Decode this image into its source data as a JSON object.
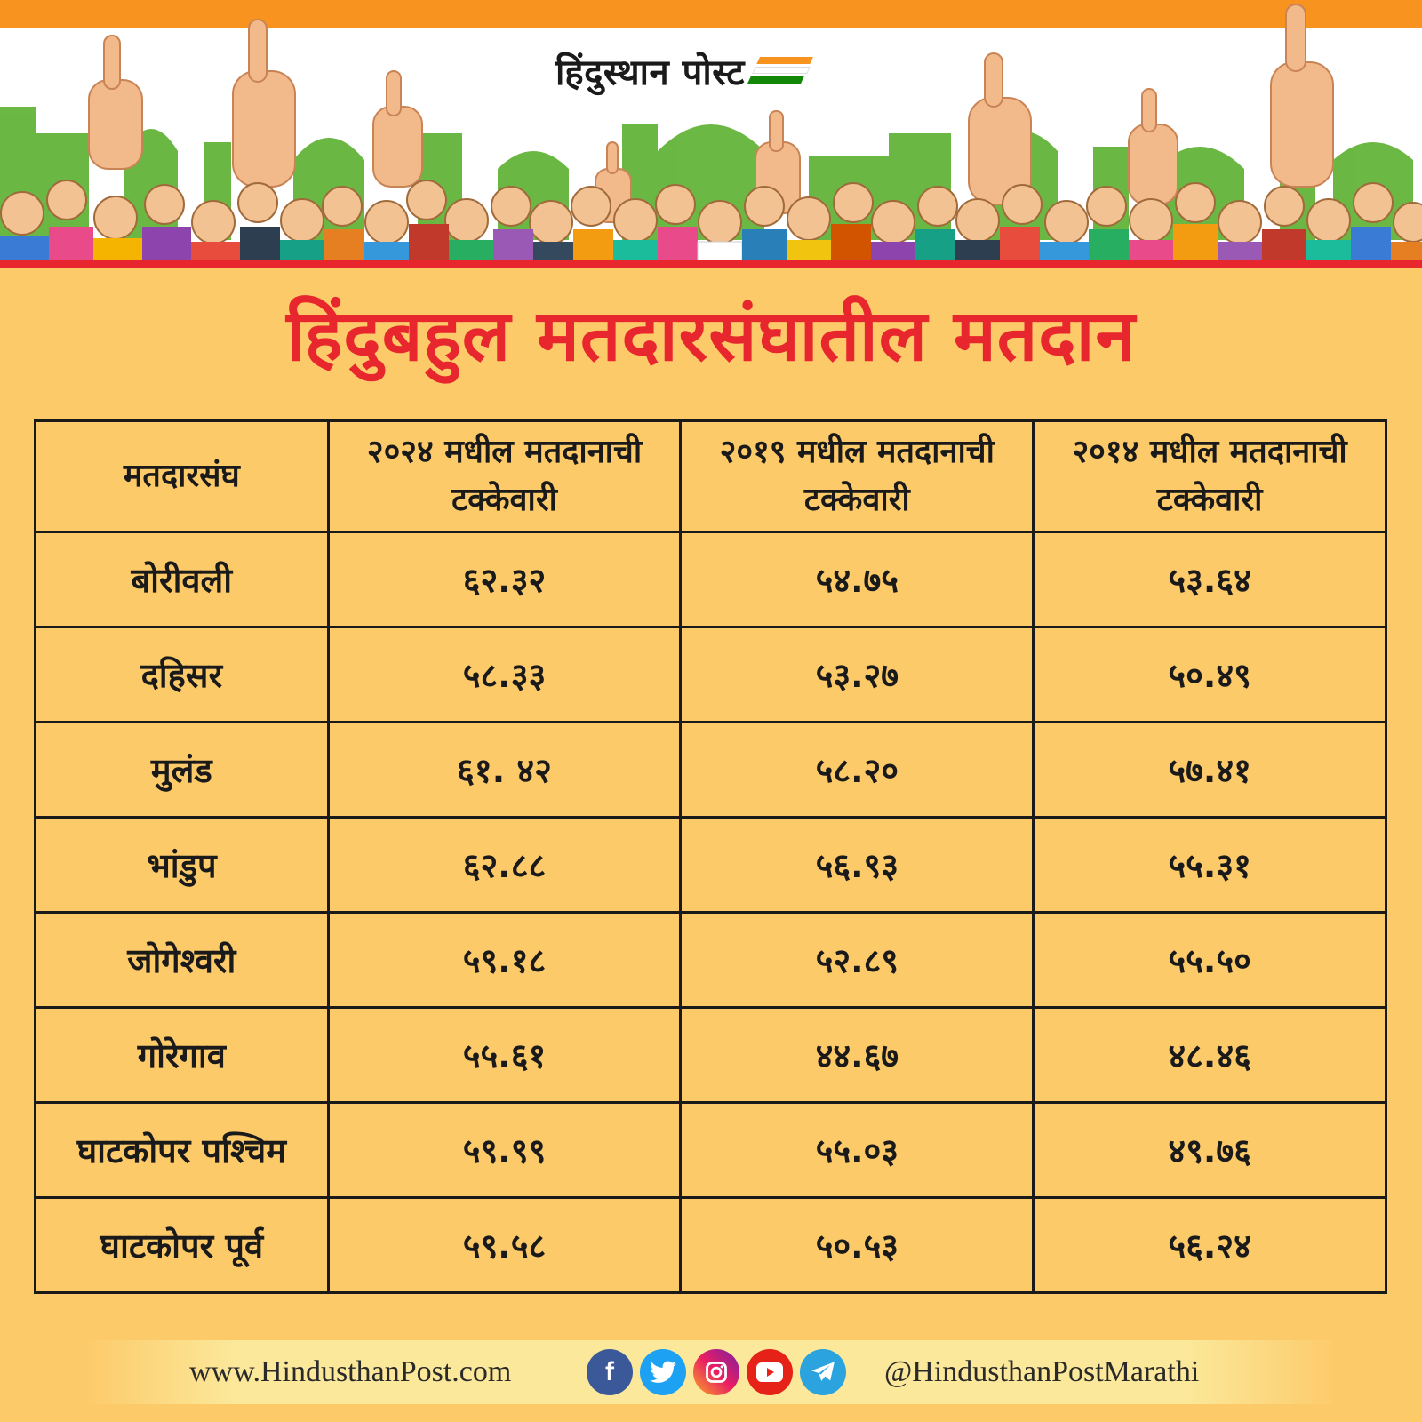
{
  "brand": {
    "logo_text": "हिंदुस्थान पोस्ट",
    "flag_colors": [
      "#f7931e",
      "#ffffff",
      "#138808"
    ]
  },
  "title": "हिंदुबहुल मतदारसंघातील मतदान",
  "table": {
    "headers": [
      "मतदारसंघ",
      "२०२४ मधील मतदानाची टक्केवारी",
      "२०१९ मधील मतदानाची टक्केवारी",
      "२०१४ मधील मतदानाची टक्केवारी"
    ],
    "rows": [
      [
        "बोरीवली",
        "६२.३२",
        "५४.७५",
        "५३.६४"
      ],
      [
        "दहिसर",
        "५८.३३",
        "५३.२७",
        "५०.४९"
      ],
      [
        "मुलंड",
        "६१. ४२",
        "५८.२०",
        "५७.४१"
      ],
      [
        "भांडुप",
        "६२.८८",
        "५६.९३",
        "५५.३१"
      ],
      [
        "जोगेश्वरी",
        "५९.१८",
        "५२.८९",
        "५५.५०"
      ],
      [
        "गोरेगाव",
        "५५.६१",
        "४४.६७",
        "४८.४६"
      ],
      [
        "घाटकोपर पश्चिम",
        "५९.९९",
        "५५.०३",
        "४९.७६"
      ],
      [
        "घाटकोपर पूर्व",
        "५९.५८",
        "५०.५३",
        "५६.२४"
      ]
    ]
  },
  "footer": {
    "website": "www.HindusthanPost.com",
    "handle": "@HindusthanPostMarathi",
    "social_icons": [
      "facebook-icon",
      "twitter-icon",
      "instagram-icon",
      "youtube-icon",
      "telegram-icon"
    ]
  },
  "colors": {
    "background": "#fdca6a",
    "title": "#e8262e",
    "banner_top": "#f7931e",
    "banner_bottom": "#e8262e",
    "skyline": "#5cb030"
  }
}
